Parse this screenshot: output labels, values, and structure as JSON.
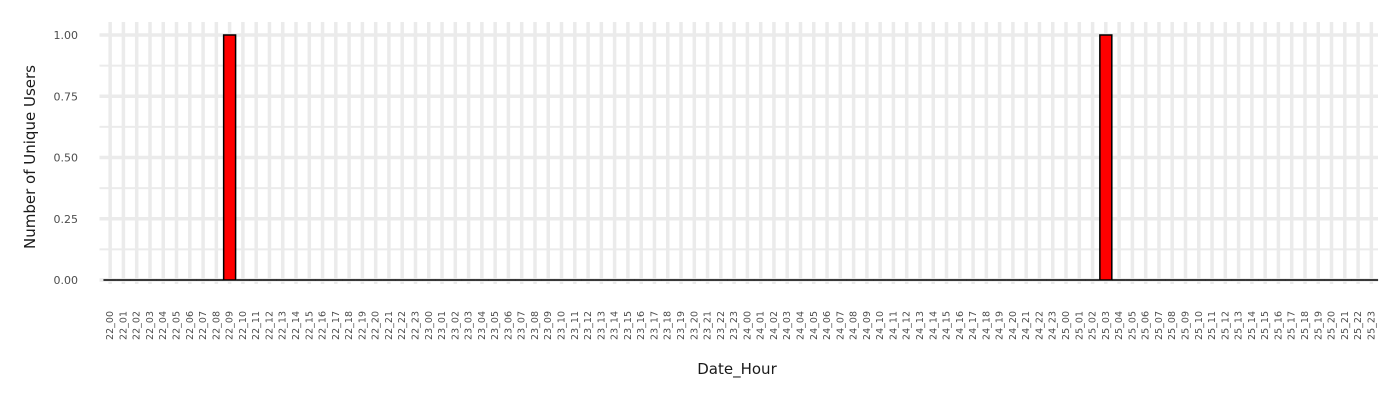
{
  "chart_data": {
    "type": "bar",
    "title": "",
    "xlabel": "Date_Hour",
    "ylabel": "Number of Unique Users",
    "ylim": [
      0,
      1.05
    ],
    "yticks": [
      "0.00",
      "0.25",
      "0.50",
      "0.75",
      "1.00"
    ],
    "grid": true,
    "categories": [
      "22_00",
      "22_01",
      "22_02",
      "22_03",
      "22_04",
      "22_05",
      "22_06",
      "22_07",
      "22_08",
      "22_09",
      "22_10",
      "22_11",
      "22_12",
      "22_13",
      "22_14",
      "22_15",
      "22_16",
      "22_17",
      "22_18",
      "22_19",
      "22_20",
      "22_21",
      "22_22",
      "22_23",
      "23_00",
      "23_01",
      "23_02",
      "23_03",
      "23_04",
      "23_05",
      "23_06",
      "23_07",
      "23_08",
      "23_09",
      "23_10",
      "23_11",
      "23_12",
      "23_13",
      "23_14",
      "23_15",
      "23_16",
      "23_17",
      "23_18",
      "23_19",
      "23_20",
      "23_21",
      "23_22",
      "23_23",
      "24_00",
      "24_01",
      "24_02",
      "24_03",
      "24_04",
      "24_05",
      "24_06",
      "24_07",
      "24_08",
      "24_09",
      "24_10",
      "24_11",
      "24_12",
      "24_13",
      "24_14",
      "24_15",
      "24_16",
      "24_17",
      "24_18",
      "24_19",
      "24_20",
      "24_21",
      "24_22",
      "24_23",
      "25_00",
      "25_01",
      "25_02",
      "25_03",
      "25_04",
      "25_05",
      "25_06",
      "25_07",
      "25_08",
      "25_09",
      "25_10",
      "25_11",
      "25_12",
      "25_13",
      "25_14",
      "25_15",
      "25_16",
      "25_17",
      "25_18",
      "25_19",
      "25_20",
      "25_21",
      "25_22",
      "25_23"
    ],
    "values": [
      0,
      0,
      0,
      0,
      0,
      0,
      0,
      0,
      0,
      1,
      0,
      0,
      0,
      0,
      0,
      0,
      0,
      0,
      0,
      0,
      0,
      0,
      0,
      0,
      0,
      0,
      0,
      0,
      0,
      0,
      0,
      0,
      0,
      0,
      0,
      0,
      0,
      0,
      0,
      0,
      0,
      0,
      0,
      0,
      0,
      0,
      0,
      0,
      0,
      0,
      0,
      0,
      0,
      0,
      0,
      0,
      0,
      0,
      0,
      0,
      0,
      0,
      0,
      0,
      0,
      0,
      0,
      0,
      0,
      0,
      0,
      0,
      0,
      0,
      0,
      1,
      0,
      0,
      0,
      0,
      0,
      0,
      0,
      0,
      0,
      0,
      0,
      0,
      0,
      0,
      0,
      0,
      0,
      0,
      0,
      0
    ],
    "colors": {
      "bar_fill": "#ff0000",
      "bar_stroke": "#000000",
      "grid": "#ebebeb"
    }
  }
}
